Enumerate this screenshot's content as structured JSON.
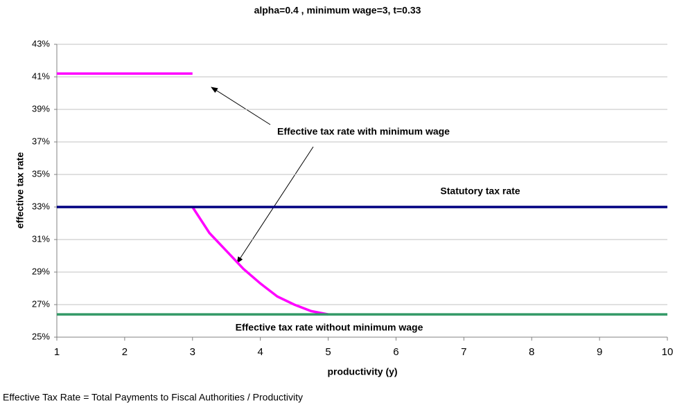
{
  "chart_data": {
    "type": "line",
    "title": "alpha=0.4 , minimum wage=3, t=0.33",
    "x_label": "productivity (y)",
    "y_label": "effective tax rate",
    "note": "Effective Tax Rate = Total Payments to Fiscal Authorities / Productivity",
    "x": [
      1,
      2,
      3,
      3,
      3,
      3.25,
      3.5,
      3.75,
      4,
      4.25,
      4.5,
      4.75,
      5,
      6,
      7,
      8,
      9,
      10
    ],
    "series": [
      {
        "name": "Effective tax rate with minimum wage",
        "color": "#ff00ff",
        "values": [
          41.2,
          41.2,
          41.2,
          null,
          33,
          31.4,
          30.3,
          29.2,
          28.3,
          27.5,
          27.0,
          26.6,
          26.4,
          null,
          null,
          null,
          null,
          null
        ]
      },
      {
        "name": "Statutory tax rate",
        "color": "#000080",
        "values": [
          33,
          33,
          33,
          33,
          33,
          33,
          33,
          33,
          33,
          33,
          33,
          33,
          33,
          33,
          33,
          33,
          33,
          33
        ]
      },
      {
        "name": "Effective tax rate without minimum wage",
        "color": "#339966",
        "values": [
          26.4,
          26.4,
          26.4,
          26.4,
          26.4,
          26.4,
          26.4,
          26.4,
          26.4,
          26.4,
          26.4,
          26.4,
          26.4,
          26.4,
          26.4,
          26.4,
          26.4,
          26.4
        ]
      }
    ],
    "xlim": [
      1,
      10
    ],
    "xticks": [
      1,
      2,
      3,
      4,
      5,
      6,
      7,
      8,
      9,
      10
    ],
    "ylim": [
      25,
      43
    ],
    "yticks": [
      {
        "value": 25,
        "label": "25%"
      },
      {
        "value": 27,
        "label": "27%"
      },
      {
        "value": 29,
        "label": "29%"
      },
      {
        "value": 31,
        "label": "31%"
      },
      {
        "value": 33,
        "label": "33%"
      },
      {
        "value": 35,
        "label": "35%"
      },
      {
        "value": 37,
        "label": "37%"
      },
      {
        "value": 39,
        "label": "39%"
      },
      {
        "value": 41,
        "label": "41%"
      },
      {
        "value": 43,
        "label": "43%"
      }
    ],
    "grid": true
  }
}
